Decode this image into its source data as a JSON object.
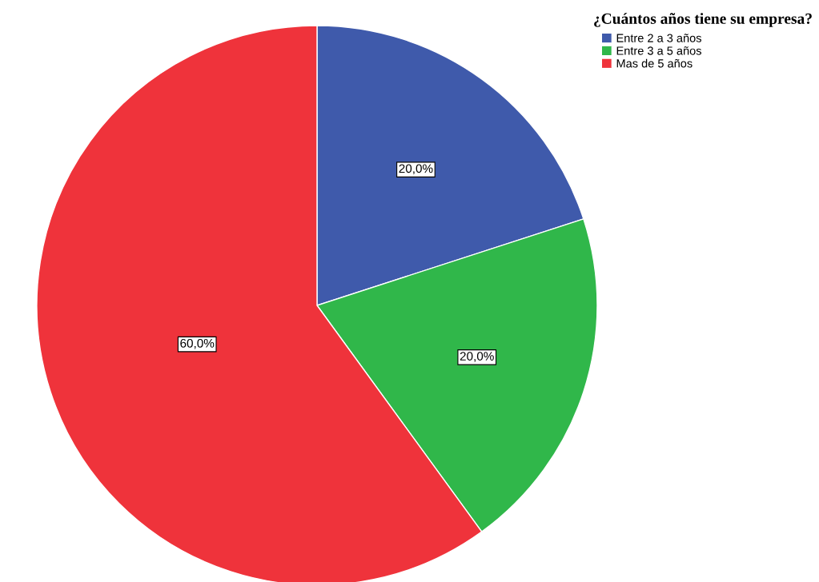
{
  "chart_data": {
    "type": "pie",
    "title": "¿Cuántos años tiene su empresa?",
    "categories": [
      "Entre 2 a 3 años",
      "Entre 3 a 5 años",
      "Mas de 5 años"
    ],
    "values": [
      20,
      20,
      60
    ],
    "colors": [
      "#3f5aab",
      "#30b74a",
      "#ef333b"
    ],
    "value_labels": [
      "20,0%",
      "20,0%",
      "60,0%"
    ],
    "legend": "top right"
  }
}
